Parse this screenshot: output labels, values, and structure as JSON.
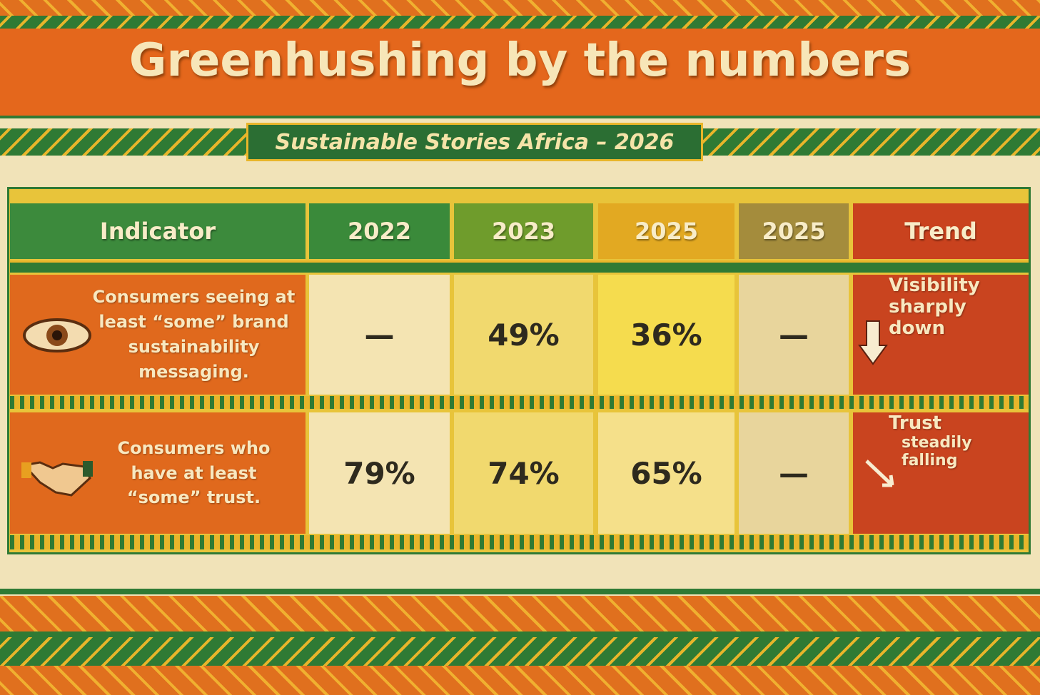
{
  "header": {
    "title": "Greenhushing by the numbers",
    "subtitle": "Sustainable Stories Africa – 2026"
  },
  "table": {
    "columns": [
      "Indicator",
      "2022",
      "2023",
      "2025",
      "2025",
      "Trend"
    ],
    "rows": [
      {
        "indicator": "Consumers seeing at least “some” brand sustainability messaging.",
        "cells": [
          "—",
          "49%",
          "36%",
          "—"
        ],
        "trend": [
          "Visibility",
          "sharply down"
        ]
      },
      {
        "indicator": "Consumers who have at least “some” trust.",
        "cells": [
          "79%",
          "74%",
          "65%",
          "—"
        ],
        "trend": [
          "Trust",
          "steadily falling"
        ]
      }
    ]
  }
}
